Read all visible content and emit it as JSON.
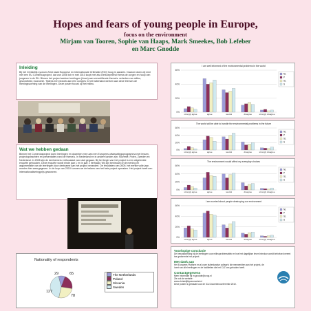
{
  "title": "Hopes and fears of young people in Europe,",
  "subtitle": "focus on the environment",
  "authors_line1": "Mirjam van Tooren, Sophie van Haaps, Mark Smeekes, Bob Lefeber",
  "authors_line2": "en Marc Gnodde",
  "inleiding": {
    "heading": "Inleiding",
    "text": "Bij het Christelijk Lyceum Zeist staat Europese en Internationale Oriëntatie (EIO) hoog in aanzien. Daarom doen wij mee met een EU Comeniusproject, dat van 2008 tot en met 2010 loopt met als overkoepelend thema de zorgen en hoop van jongeren in de EU. Binnen het project werken leerlingen (4vwo) aan verschillende thema's: verleden van milieu, gezondheid, economie. Tijdens een bezoek aan een congres in het buitenland werken aan deze thema's de meningsvorming van de leerlingen. Deze poster focust op het milieu."
  },
  "gedaan": {
    "heading": "Wat we hebben gedaan",
    "text": "Binnen het Comeniusproject doen leerlingen en docenten mee aan een Europees uitwisselingsprogramma met lessen, projectopdrachten en presentaties rond de thema's. In Nederland en in andere landen zijn: Slovenië, Polen, Zweden en Nederland. In 2008 zijn de deelnemers enthousiast van start gegaan. Bij het begin van het project is een uitgebreide enquête gehouden. Deze enquête wordt einde jaar 1 en in jaar 2 herhaald. Wij zijn benieuwd of de mening en argumentatie van de leerlingen door deelname aan het project verandert. De resultaten van 2009, het eerste volle jaar, worden hier weergegeven. In de loop van 2010 kunnen we de balans van het hele project opmaken. Het project heeft een internationaliseringprijs gewonnen."
  },
  "pie": {
    "title": "Nationality of respondents",
    "labels": [
      "29",
      "65",
      "78",
      "127"
    ],
    "legend": [
      "The Netherlands",
      "Poland",
      "Slovenia",
      "Sweden"
    ],
    "colors": [
      "#9b9bd9",
      "#8c2e5a",
      "#f2f0c2",
      "#cfe9ef"
    ]
  },
  "conclusie": {
    "heading": "Voorlopige conclusie",
    "text": "De bewustwording bij de leerlingen voor milieuproblematiek en hoe het dagelijkse leven hierdoor wordt beïnvloed neemt toe gedurende het project."
  },
  "dank": {
    "heading": "Met dank aan",
    "text": "Het Europees Platform en al onze buitenlandse college's die meewerkten aan het project, de inzet van alle leerlingen en de faciliteiten die het CLZ ons geboden heeft."
  },
  "contact": {
    "heading": "Contactgegevens",
    "line1": "Meer informatie bij m.gnodde@cvog.nl",
    "line2": "Zie ook de website:",
    "line3": "www.christelijklyceumzeist.nl",
    "line4": "Deze poster is gemaakt voor de ICU-Docentenconferentie 2010."
  },
  "chart_data": [
    {
      "type": "bar",
      "title": "I am well informed of the environmental problems in the world",
      "categories": [
        "strongly agree",
        "agree",
        "neutral",
        "disagree",
        "strongly disagree"
      ],
      "ylim": [
        0,
        60
      ],
      "yticks": [
        "0%",
        "20%",
        "40%",
        "60%"
      ],
      "series": [
        {
          "name": "NL",
          "values": [
            5,
            48,
            32,
            10,
            3
          ]
        },
        {
          "name": "P",
          "values": [
            8,
            40,
            28,
            12,
            4
          ]
        },
        {
          "name": "SL",
          "values": [
            6,
            42,
            30,
            14,
            2
          ]
        },
        {
          "name": "S",
          "values": [
            4,
            46,
            34,
            11,
            3
          ]
        }
      ]
    },
    {
      "type": "bar",
      "title": "The world will be able to handle the environmental problems in the future",
      "categories": [
        "strongly agree",
        "agree",
        "neutral",
        "disagree",
        "strongly disagree"
      ],
      "ylim": [
        0,
        60
      ],
      "yticks": [
        "0%",
        "20%",
        "40%",
        "60%"
      ],
      "series": [
        {
          "name": "NL",
          "values": [
            4,
            28,
            36,
            22,
            6
          ]
        },
        {
          "name": "P",
          "values": [
            10,
            38,
            30,
            14,
            5
          ]
        },
        {
          "name": "SL",
          "values": [
            6,
            34,
            40,
            16,
            4
          ]
        },
        {
          "name": "S",
          "values": [
            3,
            24,
            46,
            20,
            8
          ]
        }
      ]
    },
    {
      "type": "bar",
      "title": "The environment would affect my everyday choices",
      "categories": [
        "strongly agree",
        "agree",
        "neutral",
        "disagree",
        "strongly disagree"
      ],
      "ylim": [
        0,
        60
      ],
      "yticks": [
        "0%",
        "20%",
        "40%",
        "60%"
      ],
      "series": [
        {
          "name": "NL",
          "values": [
            6,
            30,
            40,
            18,
            4
          ]
        },
        {
          "name": "P",
          "values": [
            12,
            44,
            30,
            10,
            3
          ]
        },
        {
          "name": "SL",
          "values": [
            8,
            36,
            38,
            14,
            2
          ]
        },
        {
          "name": "S",
          "values": [
            5,
            34,
            42,
            16,
            5
          ]
        }
      ]
    },
    {
      "type": "bar",
      "title": "I am worried about people destroying our environment",
      "categories": [
        "strongly agree",
        "agree",
        "neutral",
        "disagree",
        "strongly disagree"
      ],
      "ylim": [
        0,
        60
      ],
      "yticks": [
        "0%",
        "20%",
        "40%",
        "60%"
      ],
      "series": [
        {
          "name": "NL",
          "values": [
            18,
            46,
            24,
            8,
            3
          ]
        },
        {
          "name": "P",
          "values": [
            22,
            50,
            18,
            6,
            2
          ]
        },
        {
          "name": "SL",
          "values": [
            16,
            44,
            26,
            9,
            3
          ]
        },
        {
          "name": "S",
          "values": [
            14,
            42,
            30,
            10,
            4
          ]
        }
      ]
    }
  ],
  "series_colors": [
    "#9b9bd9",
    "#8c2e5a",
    "#f2f0c2",
    "#cfe9ef"
  ]
}
